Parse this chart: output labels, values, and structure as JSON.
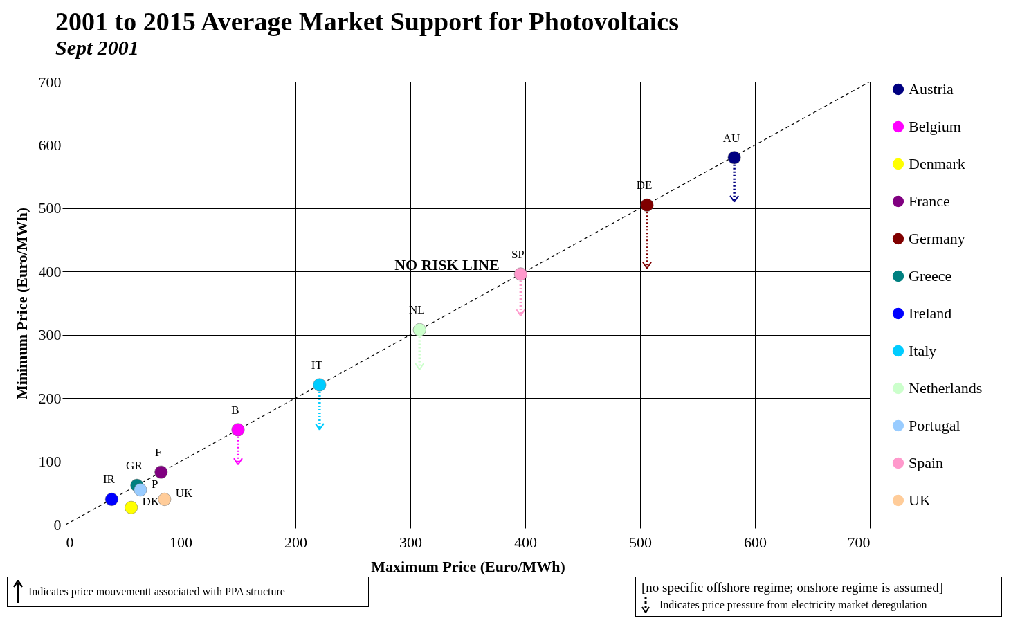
{
  "chart_data": {
    "type": "scatter",
    "title": "2001 to 2015 Average Market Support for Photovoltaics",
    "subtitle": "Sept 2001",
    "xlabel": "Maximum Price (Euro/MWh)",
    "ylabel": "Minimum Price (Euro/MWh)",
    "xlim": [
      0,
      700
    ],
    "ylim": [
      0,
      700
    ],
    "xticks": [
      0,
      100,
      200,
      300,
      400,
      500,
      600,
      700
    ],
    "yticks": [
      0,
      100,
      200,
      300,
      400,
      500,
      600,
      700
    ],
    "grid": true,
    "legend": "right",
    "marker": "circle",
    "series": [
      {
        "name": "Austria",
        "color": "#000080",
        "x": [
          582
        ],
        "values": [
          580
        ],
        "errors": [
          [
            510,
            580
          ]
        ]
      },
      {
        "name": "Belgium",
        "color": "#ff00ff",
        "x": [
          150
        ],
        "values": [
          150
        ],
        "errors": [
          [
            95,
            150
          ]
        ]
      },
      {
        "name": "Denmark",
        "color": "#ffff00",
        "x": [
          57
        ],
        "values": [
          27
        ]
      },
      {
        "name": "France",
        "color": "#800080",
        "x": [
          83
        ],
        "values": [
          83
        ]
      },
      {
        "name": "Germany",
        "color": "#800000",
        "x": [
          506
        ],
        "values": [
          505
        ],
        "errors": [
          [
            405,
            505
          ]
        ]
      },
      {
        "name": "Greece",
        "color": "#008080",
        "x": [
          62
        ],
        "values": [
          62
        ]
      },
      {
        "name": "Ireland",
        "color": "#0000ff",
        "x": [
          40
        ],
        "values": [
          40
        ]
      },
      {
        "name": "Italy",
        "color": "#00ccff",
        "x": [
          221
        ],
        "values": [
          221
        ],
        "errors": [
          [
            150,
            221
          ]
        ]
      },
      {
        "name": "Netherlands",
        "color": "#ccffcc",
        "x": [
          308
        ],
        "values": [
          308
        ],
        "errors": [
          [
            245,
            308
          ]
        ]
      },
      {
        "name": "Portugal",
        "color": "#99ccff",
        "x": [
          65
        ],
        "values": [
          55
        ]
      },
      {
        "name": "Spain",
        "color": "#ff99cc",
        "x": [
          396
        ],
        "values": [
          396
        ],
        "errors": [
          [
            330,
            396
          ]
        ]
      },
      {
        "name": "UK",
        "color": "#ffcc99",
        "x": [
          86
        ],
        "values": [
          40
        ]
      },
      {
        "name": "NO RISK LINE",
        "type": "line",
        "color": "#000000",
        "line_style": "dashed",
        "marker": "none",
        "x": [
          0,
          700
        ],
        "values": [
          0,
          700
        ]
      }
    ],
    "annotations": [
      {
        "text": "AU",
        "x": 582,
        "y": 580
      },
      {
        "text": "DE",
        "x": 506,
        "y": 505
      },
      {
        "text": "SP",
        "x": 396,
        "y": 396
      },
      {
        "text": "NL",
        "x": 308,
        "y": 308
      },
      {
        "text": "IT",
        "x": 221,
        "y": 221
      },
      {
        "text": "B",
        "x": 150,
        "y": 150
      },
      {
        "text": "F",
        "x": 83,
        "y": 83
      },
      {
        "text": "GR",
        "x": 62,
        "y": 62
      },
      {
        "text": "IR",
        "x": 40,
        "y": 40
      },
      {
        "text": "P",
        "x": 65,
        "y": 55
      },
      {
        "text": "UK",
        "x": 86,
        "y": 40
      },
      {
        "text": "DK",
        "x": 57,
        "y": 27
      },
      "Indicates price mouvementt associated with PPA structure",
      "[no specific offshore regime; onshore regime is assumed]",
      "Indicates price pressure from electricity market deregulation"
    ]
  }
}
